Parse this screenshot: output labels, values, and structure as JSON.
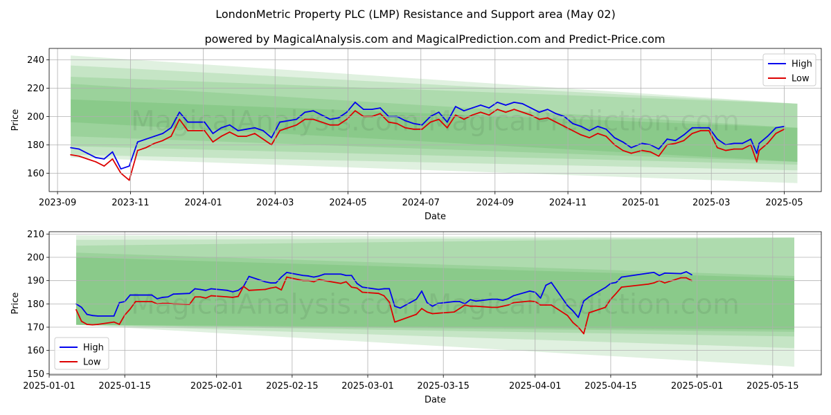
{
  "title": "LondonMetric Property PLC (LMP) Resistance and Support area (May 02)",
  "subtitle": "powered by MagicalAnalysis.com and MagicalPrediction.com and Predict-Price.com",
  "watermark": "MagicalAnalysis.com    MagicalPrediction.com",
  "colors": {
    "high": "#0000ee",
    "low": "#dd0000",
    "band": "#2ca02c",
    "grid": "#b0b0b0"
  },
  "chart_data": [
    {
      "type": "line",
      "title": "",
      "xlabel": "Date",
      "ylabel": "Price",
      "x_type": "date",
      "xlim": [
        "2023-08-25",
        "2025-06-01"
      ],
      "ylim": [
        147,
        248
      ],
      "y_ticks": [
        160,
        180,
        200,
        220,
        240
      ],
      "x_ticks": [
        "2023-09-01",
        "2023-11-01",
        "2024-01-01",
        "2024-03-01",
        "2024-05-01",
        "2024-07-01",
        "2024-09-01",
        "2024-11-01",
        "2025-01-01",
        "2025-03-01",
        "2025-05-01"
      ],
      "x_tick_labels": [
        "2023-09",
        "2023-11",
        "2024-01",
        "2024-03",
        "2024-05",
        "2024-07",
        "2024-09",
        "2024-11",
        "2025-01",
        "2025-03",
        "2025-05"
      ],
      "grid": true,
      "legend": {
        "position": "top-right",
        "entries": [
          "High",
          "Low"
        ]
      },
      "bands": [
        {
          "x": [
            "2023-09-12",
            "2025-05-12"
          ],
          "upper": [
            243,
            209
          ],
          "lower": [
            171,
            153
          ]
        },
        {
          "x": [
            "2023-09-12",
            "2025-05-12"
          ],
          "upper": [
            236,
            209
          ],
          "lower": [
            173,
            162
          ]
        },
        {
          "x": [
            "2023-09-12",
            "2025-05-12"
          ],
          "upper": [
            228,
            209
          ],
          "lower": [
            179,
            166
          ]
        },
        {
          "x": [
            "2023-09-12",
            "2025-05-12"
          ],
          "upper": [
            223,
            192
          ],
          "lower": [
            186,
            168
          ]
        },
        {
          "x": [
            "2023-09-12",
            "2025-05-12"
          ],
          "upper": [
            212,
            192
          ],
          "lower": [
            196,
            168
          ]
        }
      ],
      "series": [
        {
          "name": "High",
          "x": [
            "2023-09-12",
            "2023-09-19",
            "2023-09-26",
            "2023-10-03",
            "2023-10-10",
            "2023-10-17",
            "2023-10-24",
            "2023-10-31",
            "2023-11-07",
            "2023-11-14",
            "2023-11-21",
            "2023-11-28",
            "2023-12-05",
            "2023-12-12",
            "2023-12-19",
            "2024-01-02",
            "2024-01-09",
            "2024-01-16",
            "2024-01-23",
            "2024-01-30",
            "2024-02-06",
            "2024-02-13",
            "2024-02-20",
            "2024-02-27",
            "2024-03-05",
            "2024-03-12",
            "2024-03-19",
            "2024-03-26",
            "2024-04-02",
            "2024-04-09",
            "2024-04-16",
            "2024-04-23",
            "2024-04-30",
            "2024-05-07",
            "2024-05-14",
            "2024-05-21",
            "2024-05-28",
            "2024-06-04",
            "2024-06-11",
            "2024-06-18",
            "2024-06-25",
            "2024-07-02",
            "2024-07-09",
            "2024-07-16",
            "2024-07-23",
            "2024-07-30",
            "2024-08-06",
            "2024-08-13",
            "2024-08-20",
            "2024-08-27",
            "2024-09-03",
            "2024-09-10",
            "2024-09-17",
            "2024-09-24",
            "2024-10-01",
            "2024-10-08",
            "2024-10-15",
            "2024-10-22",
            "2024-10-29",
            "2024-11-05",
            "2024-11-12",
            "2024-11-19",
            "2024-11-26",
            "2024-12-03",
            "2024-12-10",
            "2024-12-17",
            "2024-12-24",
            "2025-01-02",
            "2025-01-09",
            "2025-01-16",
            "2025-01-23",
            "2025-01-30",
            "2025-02-06",
            "2025-02-13",
            "2025-02-20",
            "2025-02-27",
            "2025-03-06",
            "2025-03-13",
            "2025-03-20",
            "2025-03-27",
            "2025-04-03",
            "2025-04-08",
            "2025-04-10",
            "2025-04-17",
            "2025-04-24",
            "2025-05-01"
          ],
          "values": [
            178,
            177,
            174,
            171,
            170,
            175,
            163,
            165,
            182,
            184,
            186,
            188,
            192,
            203,
            196,
            196,
            188,
            192,
            194,
            190,
            191,
            192,
            190,
            185,
            196,
            197,
            198,
            203,
            204,
            201,
            198,
            199,
            203,
            210,
            205,
            205,
            206,
            200,
            200,
            197,
            195,
            194,
            200,
            203,
            196,
            207,
            204,
            206,
            208,
            206,
            210,
            208,
            210,
            209,
            206,
            203,
            205,
            202,
            200,
            195,
            193,
            190,
            193,
            191,
            185,
            182,
            178,
            181,
            180,
            177,
            184,
            183,
            187,
            192,
            192,
            192,
            184,
            180,
            181,
            181,
            184,
            174,
            181,
            186,
            192,
            193
          ]
        },
        {
          "name": "Low",
          "x": [
            "2023-09-12",
            "2023-09-19",
            "2023-09-26",
            "2023-10-03",
            "2023-10-10",
            "2023-10-17",
            "2023-10-24",
            "2023-10-31",
            "2023-11-07",
            "2023-11-14",
            "2023-11-21",
            "2023-11-28",
            "2023-12-05",
            "2023-12-12",
            "2023-12-19",
            "2024-01-02",
            "2024-01-09",
            "2024-01-16",
            "2024-01-23",
            "2024-01-30",
            "2024-02-06",
            "2024-02-13",
            "2024-02-20",
            "2024-02-27",
            "2024-03-05",
            "2024-03-12",
            "2024-03-19",
            "2024-03-26",
            "2024-04-02",
            "2024-04-09",
            "2024-04-16",
            "2024-04-23",
            "2024-04-30",
            "2024-05-07",
            "2024-05-14",
            "2024-05-21",
            "2024-05-28",
            "2024-06-04",
            "2024-06-11",
            "2024-06-18",
            "2024-06-25",
            "2024-07-02",
            "2024-07-09",
            "2024-07-16",
            "2024-07-23",
            "2024-07-30",
            "2024-08-06",
            "2024-08-13",
            "2024-08-20",
            "2024-08-27",
            "2024-09-03",
            "2024-09-10",
            "2024-09-17",
            "2024-09-24",
            "2024-10-01",
            "2024-10-08",
            "2024-10-15",
            "2024-10-22",
            "2024-10-29",
            "2024-11-05",
            "2024-11-12",
            "2024-11-19",
            "2024-11-26",
            "2024-12-03",
            "2024-12-10",
            "2024-12-17",
            "2024-12-24",
            "2025-01-02",
            "2025-01-09",
            "2025-01-16",
            "2025-01-23",
            "2025-01-30",
            "2025-02-06",
            "2025-02-13",
            "2025-02-20",
            "2025-02-27",
            "2025-03-06",
            "2025-03-13",
            "2025-03-20",
            "2025-03-27",
            "2025-04-03",
            "2025-04-08",
            "2025-04-10",
            "2025-04-17",
            "2025-04-24",
            "2025-05-01"
          ],
          "values": [
            173,
            172,
            170,
            168,
            165,
            170,
            160,
            155,
            176,
            178,
            181,
            183,
            186,
            198,
            190,
            190,
            182,
            186,
            189,
            186,
            186,
            188,
            184,
            180,
            190,
            192,
            194,
            198,
            198,
            196,
            194,
            194,
            198,
            204,
            200,
            200,
            202,
            196,
            195,
            192,
            191,
            191,
            196,
            198,
            192,
            201,
            198,
            201,
            203,
            201,
            205,
            203,
            205,
            203,
            201,
            198,
            199,
            196,
            193,
            190,
            187,
            185,
            188,
            186,
            180,
            176,
            174,
            176,
            175,
            172,
            180,
            181,
            183,
            188,
            190,
            190,
            178,
            176,
            177,
            177,
            180,
            168,
            176,
            181,
            188,
            191
          ]
        }
      ]
    },
    {
      "type": "line",
      "title": "",
      "xlabel": "Date",
      "ylabel": "Price",
      "x_type": "date",
      "xlim": [
        "2025-01-01",
        "2025-05-24"
      ],
      "ylim": [
        149.5,
        211
      ],
      "y_ticks": [
        150,
        160,
        170,
        180,
        190,
        200,
        210
      ],
      "x_ticks": [
        "2025-01-01",
        "2025-01-15",
        "2025-02-01",
        "2025-02-15",
        "2025-03-01",
        "2025-03-15",
        "2025-04-01",
        "2025-04-15",
        "2025-05-01",
        "2025-05-15"
      ],
      "x_tick_labels": [
        "2025-01-01",
        "2025-01-15",
        "2025-02-01",
        "2025-02-15",
        "2025-03-01",
        "2025-03-15",
        "2025-04-01",
        "2025-04-15",
        "2025-05-01",
        "2025-05-15"
      ],
      "grid": true,
      "legend": {
        "position": "bottom-left",
        "entries": [
          "High",
          "Low"
        ]
      },
      "bands": [
        {
          "x": [
            "2025-01-06",
            "2025-05-19"
          ],
          "upper": [
            209.5,
            208.5
          ],
          "lower": [
            171,
            153
          ]
        },
        {
          "x": [
            "2025-01-06",
            "2025-05-19"
          ],
          "upper": [
            207.5,
            208.5
          ],
          "lower": [
            171,
            161
          ]
        },
        {
          "x": [
            "2025-01-06",
            "2025-05-19"
          ],
          "upper": [
            205,
            208.5
          ],
          "lower": [
            171,
            166
          ]
        },
        {
          "x": [
            "2025-01-06",
            "2025-05-19"
          ],
          "upper": [
            202,
            192
          ],
          "lower": [
            171,
            168
          ]
        },
        {
          "x": [
            "2025-01-06",
            "2025-05-19"
          ],
          "upper": [
            200,
            191
          ],
          "lower": [
            171,
            169
          ]
        }
      ],
      "series": [
        {
          "name": "High",
          "x": [
            "2025-01-06",
            "2025-01-07",
            "2025-01-08",
            "2025-01-09",
            "2025-01-10",
            "2025-01-13",
            "2025-01-14",
            "2025-01-15",
            "2025-01-16",
            "2025-01-17",
            "2025-01-20",
            "2025-01-21",
            "2025-01-22",
            "2025-01-23",
            "2025-01-24",
            "2025-01-27",
            "2025-01-28",
            "2025-01-29",
            "2025-01-30",
            "2025-01-31",
            "2025-02-03",
            "2025-02-04",
            "2025-02-05",
            "2025-02-06",
            "2025-02-07",
            "2025-02-10",
            "2025-02-11",
            "2025-02-12",
            "2025-02-13",
            "2025-02-14",
            "2025-02-17",
            "2025-02-18",
            "2025-02-19",
            "2025-02-20",
            "2025-02-21",
            "2025-02-24",
            "2025-02-25",
            "2025-02-26",
            "2025-02-27",
            "2025-02-28",
            "2025-03-03",
            "2025-03-04",
            "2025-03-05",
            "2025-03-06",
            "2025-03-07",
            "2025-03-10",
            "2025-03-11",
            "2025-03-12",
            "2025-03-13",
            "2025-03-14",
            "2025-03-17",
            "2025-03-18",
            "2025-03-19",
            "2025-03-20",
            "2025-03-21",
            "2025-03-24",
            "2025-03-25",
            "2025-03-26",
            "2025-03-27",
            "2025-03-28",
            "2025-03-31",
            "2025-04-01",
            "2025-04-02",
            "2025-04-03",
            "2025-04-04",
            "2025-04-07",
            "2025-04-08",
            "2025-04-09",
            "2025-04-10",
            "2025-04-11",
            "2025-04-14",
            "2025-04-15",
            "2025-04-16",
            "2025-04-17",
            "2025-04-22",
            "2025-04-23",
            "2025-04-24",
            "2025-04-25",
            "2025-04-28",
            "2025-04-29",
            "2025-04-30"
          ],
          "values": [
            180,
            178.5,
            175.5,
            175,
            174.8,
            174.8,
            180.5,
            181,
            183.8,
            183.8,
            183.8,
            182.2,
            182.8,
            183,
            184.2,
            184.5,
            186.5,
            186.2,
            185.8,
            186.5,
            185.8,
            185.2,
            185.8,
            187.5,
            191.8,
            189.5,
            189,
            189,
            191.5,
            193.5,
            192.2,
            192,
            191.5,
            192,
            192.8,
            192.8,
            192.2,
            192.2,
            188.8,
            187.2,
            186.2,
            186.5,
            186.5,
            179,
            178.2,
            182,
            185.5,
            180.5,
            179,
            180.2,
            181,
            181,
            180,
            181.8,
            181.2,
            182,
            182,
            181.5,
            182.2,
            183.5,
            185.5,
            185,
            182.5,
            188,
            189.2,
            179.2,
            177,
            174.2,
            181.2,
            183,
            187,
            188.8,
            189.2,
            191.5,
            193.2,
            193.5,
            192.2,
            193.2,
            193,
            193.8,
            192.5
          ]
        },
        {
          "name": "Low",
          "x": [
            "2025-01-06",
            "2025-01-07",
            "2025-01-08",
            "2025-01-09",
            "2025-01-10",
            "2025-01-13",
            "2025-01-14",
            "2025-01-15",
            "2025-01-16",
            "2025-01-17",
            "2025-01-20",
            "2025-01-21",
            "2025-01-22",
            "2025-01-23",
            "2025-01-24",
            "2025-01-27",
            "2025-01-28",
            "2025-01-29",
            "2025-01-30",
            "2025-01-31",
            "2025-02-03",
            "2025-02-04",
            "2025-02-05",
            "2025-02-06",
            "2025-02-07",
            "2025-02-10",
            "2025-02-11",
            "2025-02-12",
            "2025-02-13",
            "2025-02-14",
            "2025-02-17",
            "2025-02-18",
            "2025-02-19",
            "2025-02-20",
            "2025-02-21",
            "2025-02-24",
            "2025-02-25",
            "2025-02-26",
            "2025-02-27",
            "2025-02-28",
            "2025-03-03",
            "2025-03-04",
            "2025-03-05",
            "2025-03-06",
            "2025-03-07",
            "2025-03-10",
            "2025-03-11",
            "2025-03-12",
            "2025-03-13",
            "2025-03-14",
            "2025-03-17",
            "2025-03-18",
            "2025-03-19",
            "2025-03-20",
            "2025-03-21",
            "2025-03-24",
            "2025-03-25",
            "2025-03-26",
            "2025-03-27",
            "2025-03-28",
            "2025-03-31",
            "2025-04-01",
            "2025-04-02",
            "2025-04-03",
            "2025-04-04",
            "2025-04-07",
            "2025-04-08",
            "2025-04-09",
            "2025-04-10",
            "2025-04-11",
            "2025-04-14",
            "2025-04-15",
            "2025-04-16",
            "2025-04-17",
            "2025-04-22",
            "2025-04-23",
            "2025-04-24",
            "2025-04-25",
            "2025-04-28",
            "2025-04-29",
            "2025-04-30"
          ],
          "values": [
            177.5,
            172.5,
            171.2,
            171,
            171.2,
            172.2,
            171.2,
            175.2,
            177.8,
            181,
            181,
            180,
            180.2,
            180.2,
            180,
            179.8,
            183,
            183,
            182.5,
            183.5,
            183,
            182.8,
            183.2,
            187.5,
            185.8,
            186.2,
            186.8,
            187.2,
            186,
            191.5,
            190,
            190,
            189.5,
            190.5,
            190,
            188.8,
            189.5,
            187.2,
            186.8,
            185,
            184.5,
            183.5,
            180.8,
            172.2,
            173,
            175.5,
            178,
            176.5,
            175.8,
            176,
            176.5,
            178,
            179.5,
            179,
            179,
            178.5,
            178.5,
            179,
            179.5,
            180.5,
            181.2,
            181,
            179.5,
            179.5,
            179.5,
            175,
            172,
            170,
            167.2,
            176.2,
            178.5,
            182,
            184.5,
            187.2,
            188.5,
            189,
            190,
            189,
            191.2,
            191.2,
            190
          ]
        }
      ]
    }
  ]
}
